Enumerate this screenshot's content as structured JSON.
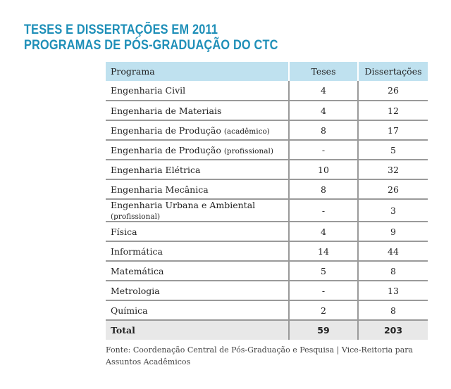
{
  "title": {
    "line1": "TESES E DISSERTAÇÕES EM 2011",
    "line2": "PROGRAMAS DE PÓS-GRADUAÇÃO DO CTC"
  },
  "table": {
    "headers": [
      "Programa",
      "Teses",
      "Dissertações"
    ],
    "rows": [
      {
        "programa": "Engenharia Civil",
        "qualifier": "",
        "teses": "4",
        "dissertacoes": "26"
      },
      {
        "programa": "Engenharia de Materiais",
        "qualifier": "",
        "teses": "4",
        "dissertacoes": "12"
      },
      {
        "programa": "Engenharia de Produção",
        "qualifier": "(acadêmico)",
        "teses": "8",
        "dissertacoes": "17"
      },
      {
        "programa": "Engenharia de Produção",
        "qualifier": "(profissional)",
        "teses": "-",
        "dissertacoes": "5"
      },
      {
        "programa": "Engenharia Elétrica",
        "qualifier": "",
        "teses": "10",
        "dissertacoes": "32"
      },
      {
        "programa": "Engenharia Mecânica",
        "qualifier": "",
        "teses": "8",
        "dissertacoes": "26"
      },
      {
        "programa": "Engenharia Urbana e Ambiental",
        "qualifier": "(profissional)",
        "teses": "-",
        "dissertacoes": "3"
      },
      {
        "programa": "Física",
        "qualifier": "",
        "teses": "4",
        "dissertacoes": "9"
      },
      {
        "programa": "Informática",
        "qualifier": "",
        "teses": "14",
        "dissertacoes": "44"
      },
      {
        "programa": "Matemática",
        "qualifier": "",
        "teses": "5",
        "dissertacoes": "8"
      },
      {
        "programa": "Metrologia",
        "qualifier": "",
        "teses": "-",
        "dissertacoes": "13"
      },
      {
        "programa": "Química",
        "qualifier": "",
        "teses": "2",
        "dissertacoes": "8"
      }
    ],
    "total": {
      "label": "Total",
      "teses": "59",
      "dissertacoes": "203"
    }
  },
  "source": "Fonte: Coordenação Central de Pós-Graduação e Pesquisa | Vice-Reitoria para Assuntos Acadêmicos"
}
